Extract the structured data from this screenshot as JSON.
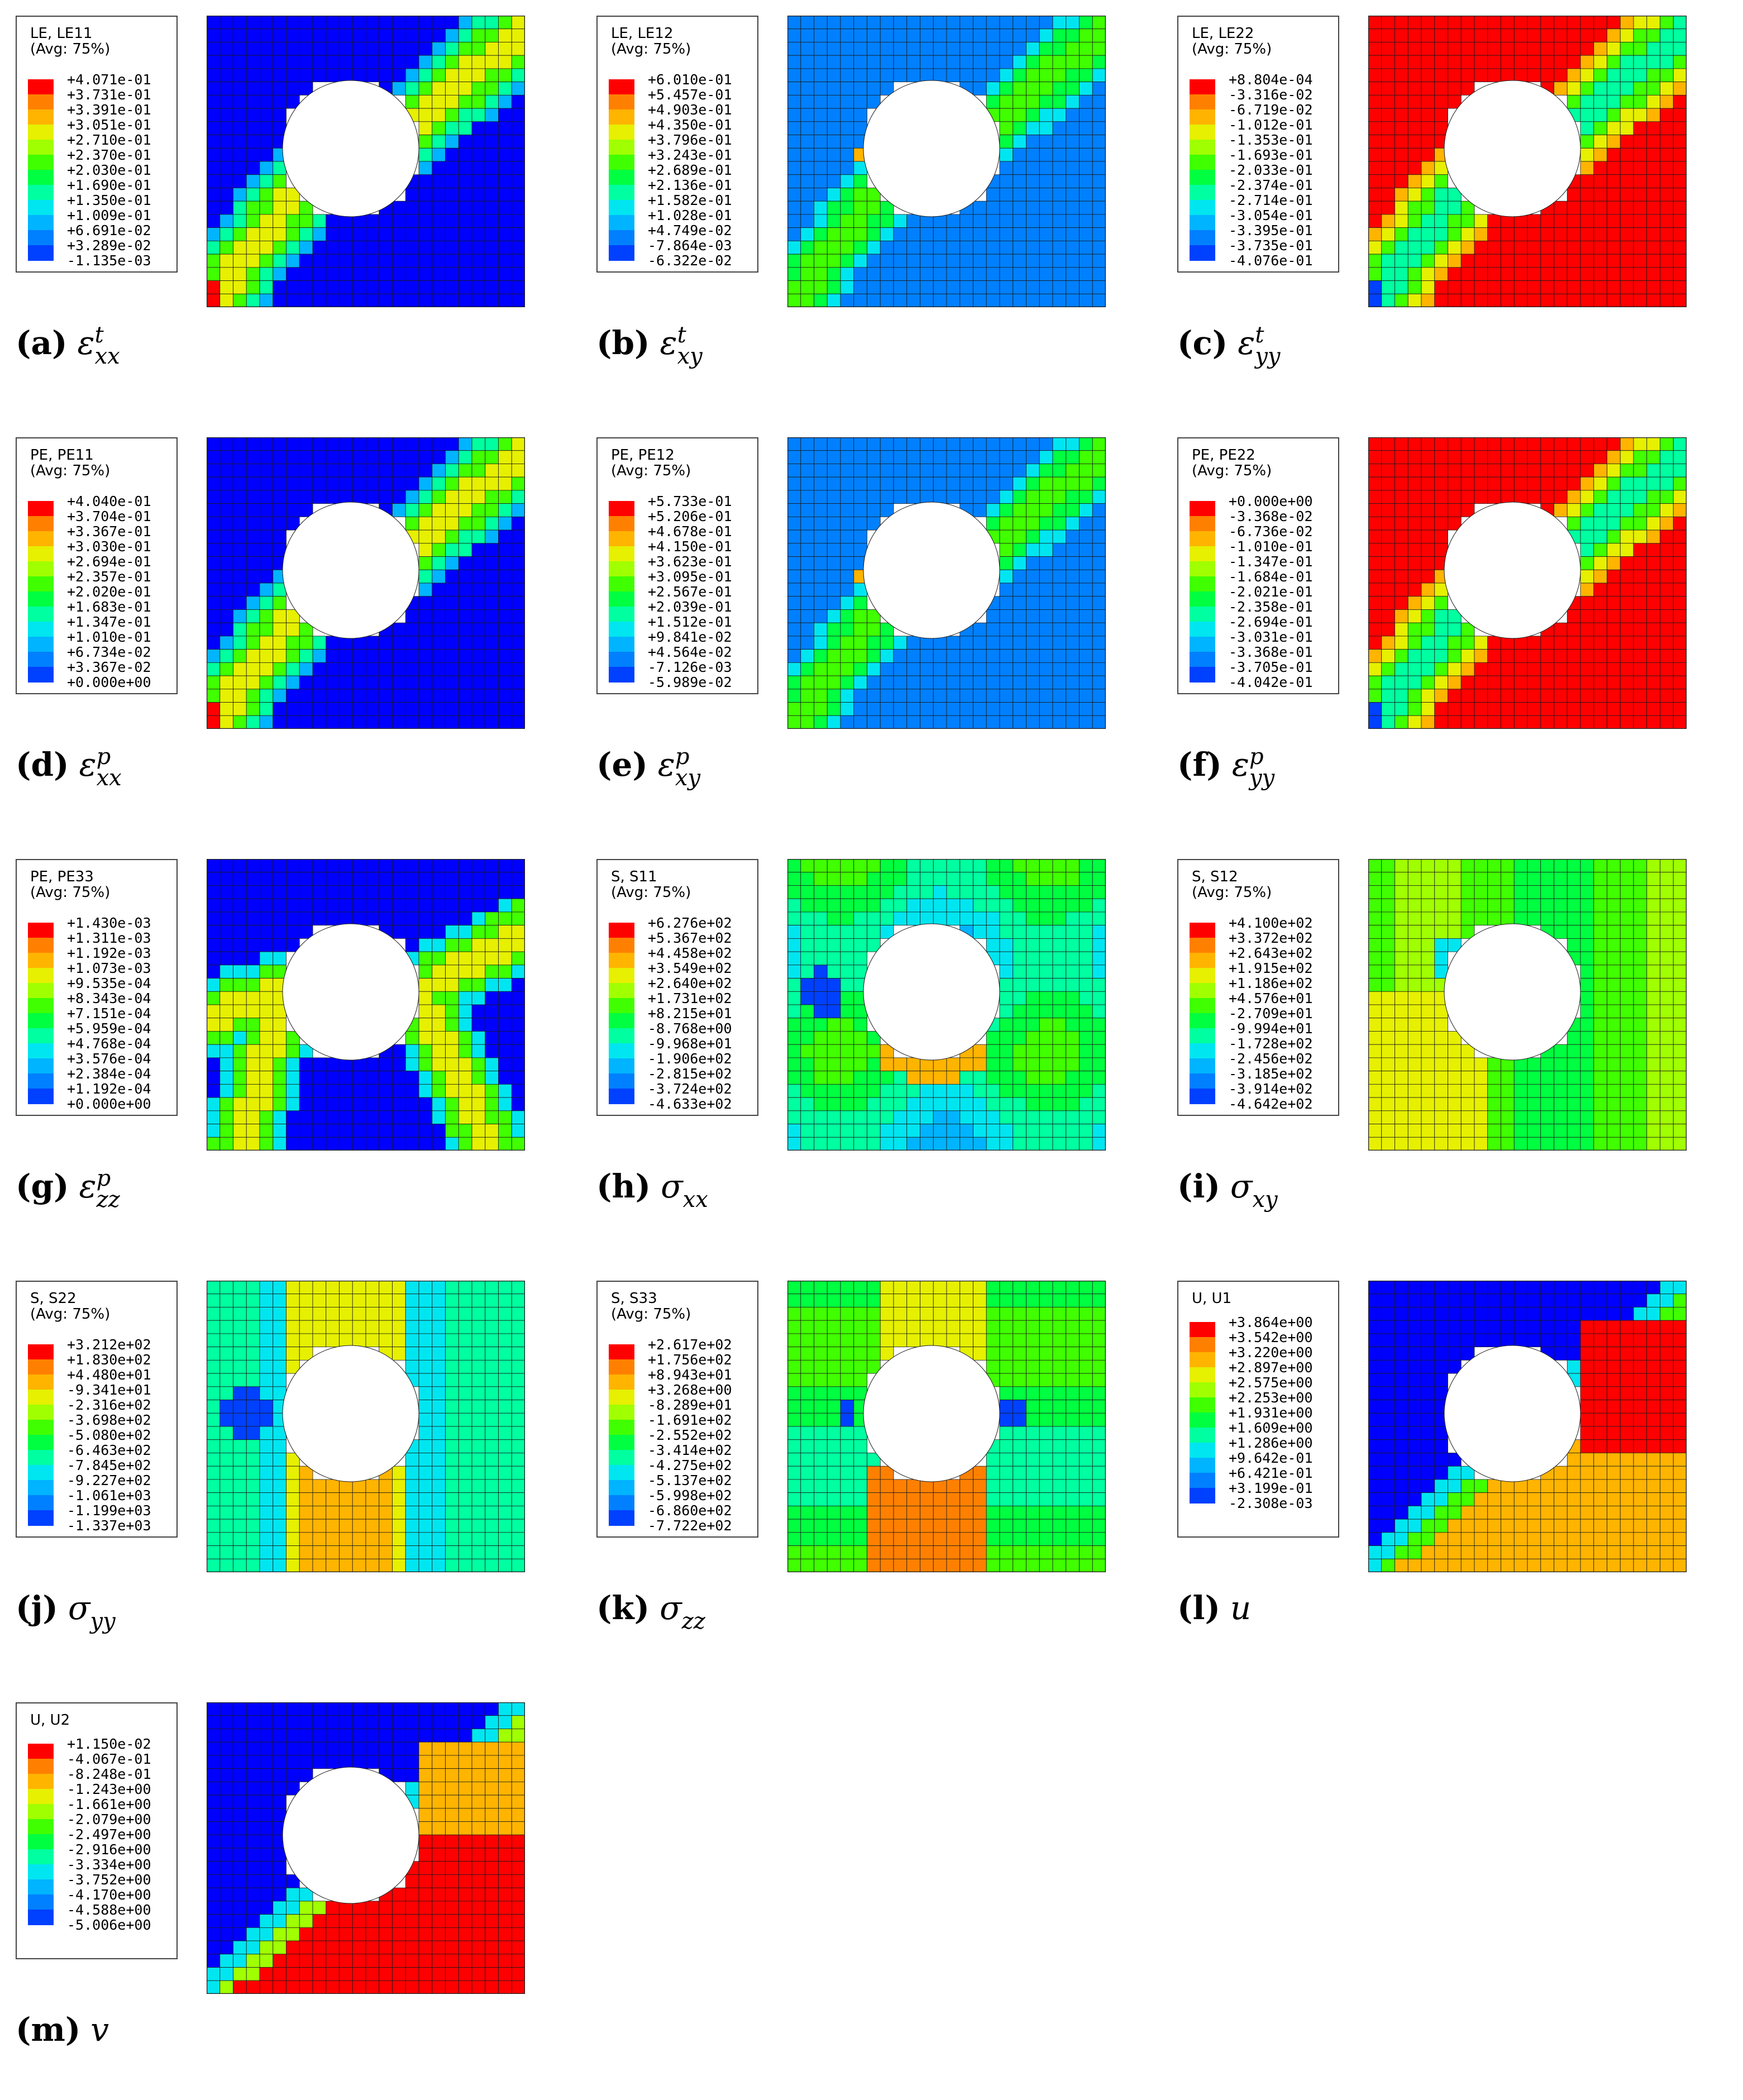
{
  "colors": {
    "scale": [
      "#0000ff",
      "#0040ff",
      "#0080ff",
      "#00b4ff",
      "#00e6f0",
      "#00ffa0",
      "#00ff40",
      "#40ff00",
      "#a0ff00",
      "#e6f000",
      "#ffb400",
      "#ff8000",
      "#ff0000"
    ],
    "mesh": "#1a1a1a"
  },
  "legend_avg": "(Avg: 75%)",
  "panels": [
    {
      "id": "a",
      "letter": "(a)",
      "sym": "ε",
      "sub": "xx",
      "sup": "t",
      "field": "LE, LE11",
      "pattern": "band-hot",
      "values": [
        "+4.071e-01",
        "+3.731e-01",
        "+3.391e-01",
        "+3.051e-01",
        "+2.710e-01",
        "+2.370e-01",
        "+2.030e-01",
        "+1.690e-01",
        "+1.350e-01",
        "+1.009e-01",
        "+6.691e-02",
        "+3.289e-02",
        "-1.135e-03"
      ]
    },
    {
      "id": "b",
      "letter": "(b)",
      "sym": "ε",
      "sub": "xy",
      "sup": "t",
      "field": "LE, LE12",
      "pattern": "band-mid",
      "values": [
        "+6.010e-01",
        "+5.457e-01",
        "+4.903e-01",
        "+4.350e-01",
        "+3.796e-01",
        "+3.243e-01",
        "+2.689e-01",
        "+2.136e-01",
        "+1.582e-01",
        "+1.028e-01",
        "+4.749e-02",
        "-7.864e-03",
        "-6.322e-02"
      ]
    },
    {
      "id": "c",
      "letter": "(c)",
      "sym": "ε",
      "sub": "yy",
      "sup": "t",
      "field": "LE, LE22",
      "pattern": "band-cold",
      "values": [
        "+8.804e-04",
        "-3.316e-02",
        "-6.719e-02",
        "-1.012e-01",
        "-1.353e-01",
        "-1.693e-01",
        "-2.033e-01",
        "-2.374e-01",
        "-2.714e-01",
        "-3.054e-01",
        "-3.395e-01",
        "-3.735e-01",
        "-4.076e-01"
      ]
    },
    {
      "id": "d",
      "letter": "(d)",
      "sym": "ε",
      "sub": "xx",
      "sup": "p",
      "field": "PE, PE11",
      "pattern": "band-hot",
      "values": [
        "+4.040e-01",
        "+3.704e-01",
        "+3.367e-01",
        "+3.030e-01",
        "+2.694e-01",
        "+2.357e-01",
        "+2.020e-01",
        "+1.683e-01",
        "+1.347e-01",
        "+1.010e-01",
        "+6.734e-02",
        "+3.367e-02",
        "+0.000e+00"
      ]
    },
    {
      "id": "e",
      "letter": "(e)",
      "sym": "ε",
      "sub": "xy",
      "sup": "p",
      "field": "PE, PE12",
      "pattern": "band-mid",
      "values": [
        "+5.733e-01",
        "+5.206e-01",
        "+4.678e-01",
        "+4.150e-01",
        "+3.623e-01",
        "+3.095e-01",
        "+2.567e-01",
        "+2.039e-01",
        "+1.512e-01",
        "+9.841e-02",
        "+4.564e-02",
        "-7.126e-03",
        "-5.989e-02"
      ]
    },
    {
      "id": "f",
      "letter": "(f)",
      "sym": "ε",
      "sub": "yy",
      "sup": "p",
      "field": "PE, PE22",
      "pattern": "band-cold",
      "values": [
        "+0.000e+00",
        "-3.368e-02",
        "-6.736e-02",
        "-1.010e-01",
        "-1.347e-01",
        "-1.684e-01",
        "-2.021e-01",
        "-2.358e-01",
        "-2.694e-01",
        "-3.031e-01",
        "-3.368e-01",
        "-3.705e-01",
        "-4.042e-01"
      ]
    },
    {
      "id": "g",
      "letter": "(g)",
      "sym": "ε",
      "sub": "zz",
      "sup": "p",
      "field": "PE, PE33",
      "pattern": "x-band",
      "values": [
        "+1.430e-03",
        "+1.311e-03",
        "+1.192e-03",
        "+1.073e-03",
        "+9.535e-04",
        "+8.343e-04",
        "+7.151e-04",
        "+5.959e-04",
        "+4.768e-04",
        "+3.576e-04",
        "+2.384e-04",
        "+1.192e-04",
        "+0.000e+00"
      ]
    },
    {
      "id": "h",
      "letter": "(h)",
      "sym": "σ",
      "sub": "xx",
      "sup": "",
      "field": "S, S11",
      "pattern": "stress-x",
      "values": [
        "+6.276e+02",
        "+5.367e+02",
        "+4.458e+02",
        "+3.549e+02",
        "+2.640e+02",
        "+1.731e+02",
        "+8.215e+01",
        "-8.768e+00",
        "-9.968e+01",
        "-1.906e+02",
        "-2.815e+02",
        "-3.724e+02",
        "-4.633e+02"
      ]
    },
    {
      "id": "i",
      "letter": "(i)",
      "sym": "σ",
      "sub": "xy",
      "sup": "",
      "field": "S, S12",
      "pattern": "stress-xy",
      "values": [
        "+4.100e+02",
        "+3.372e+02",
        "+2.643e+02",
        "+1.915e+02",
        "+1.186e+02",
        "+4.576e+01",
        "-2.709e+01",
        "-9.994e+01",
        "-1.728e+02",
        "-2.456e+02",
        "-3.185e+02",
        "-3.914e+02",
        "-4.642e+02"
      ]
    },
    {
      "id": "j",
      "letter": "(j)",
      "sym": "σ",
      "sub": "yy",
      "sup": "",
      "field": "S, S22",
      "pattern": "stress-y",
      "values": [
        "+3.212e+02",
        "+1.830e+02",
        "+4.480e+01",
        "-9.341e+01",
        "-2.316e+02",
        "-3.698e+02",
        "-5.080e+02",
        "-6.463e+02",
        "-7.845e+02",
        "-9.227e+02",
        "-1.061e+03",
        "-1.199e+03",
        "-1.337e+03"
      ]
    },
    {
      "id": "k",
      "letter": "(k)",
      "sym": "σ",
      "sub": "zz",
      "sup": "",
      "field": "S, S33",
      "pattern": "stress-z",
      "values": [
        "+2.617e+02",
        "+1.756e+02",
        "+8.943e+01",
        "+3.268e+00",
        "-8.289e+01",
        "-1.691e+02",
        "-2.552e+02",
        "-3.414e+02",
        "-4.275e+02",
        "-5.137e+02",
        "-5.998e+02",
        "-6.860e+02",
        "-7.722e+02"
      ]
    },
    {
      "id": "l",
      "letter": "(l)",
      "sym": "u",
      "sub": "",
      "sup": "",
      "field": "U, U1",
      "pattern": "disp-u",
      "values": [
        "+3.864e+00",
        "+3.542e+00",
        "+3.220e+00",
        "+2.897e+00",
        "+2.575e+00",
        "+2.253e+00",
        "+1.931e+00",
        "+1.609e+00",
        "+1.286e+00",
        "+9.642e-01",
        "+6.421e-01",
        "+3.199e-01",
        "-2.308e-03"
      ]
    },
    {
      "id": "m",
      "letter": "(m)",
      "sym": "v",
      "sub": "",
      "sup": "",
      "field": "U, U2",
      "pattern": "disp-v",
      "values": [
        "+1.150e-02",
        "-4.067e-01",
        "-8.248e-01",
        "-1.243e+00",
        "-1.661e+00",
        "-2.079e+00",
        "-2.497e+00",
        "-2.916e+00",
        "-3.334e+00",
        "-3.752e+00",
        "-4.170e+00",
        "-4.588e+00",
        "-5.006e+00"
      ]
    }
  ]
}
